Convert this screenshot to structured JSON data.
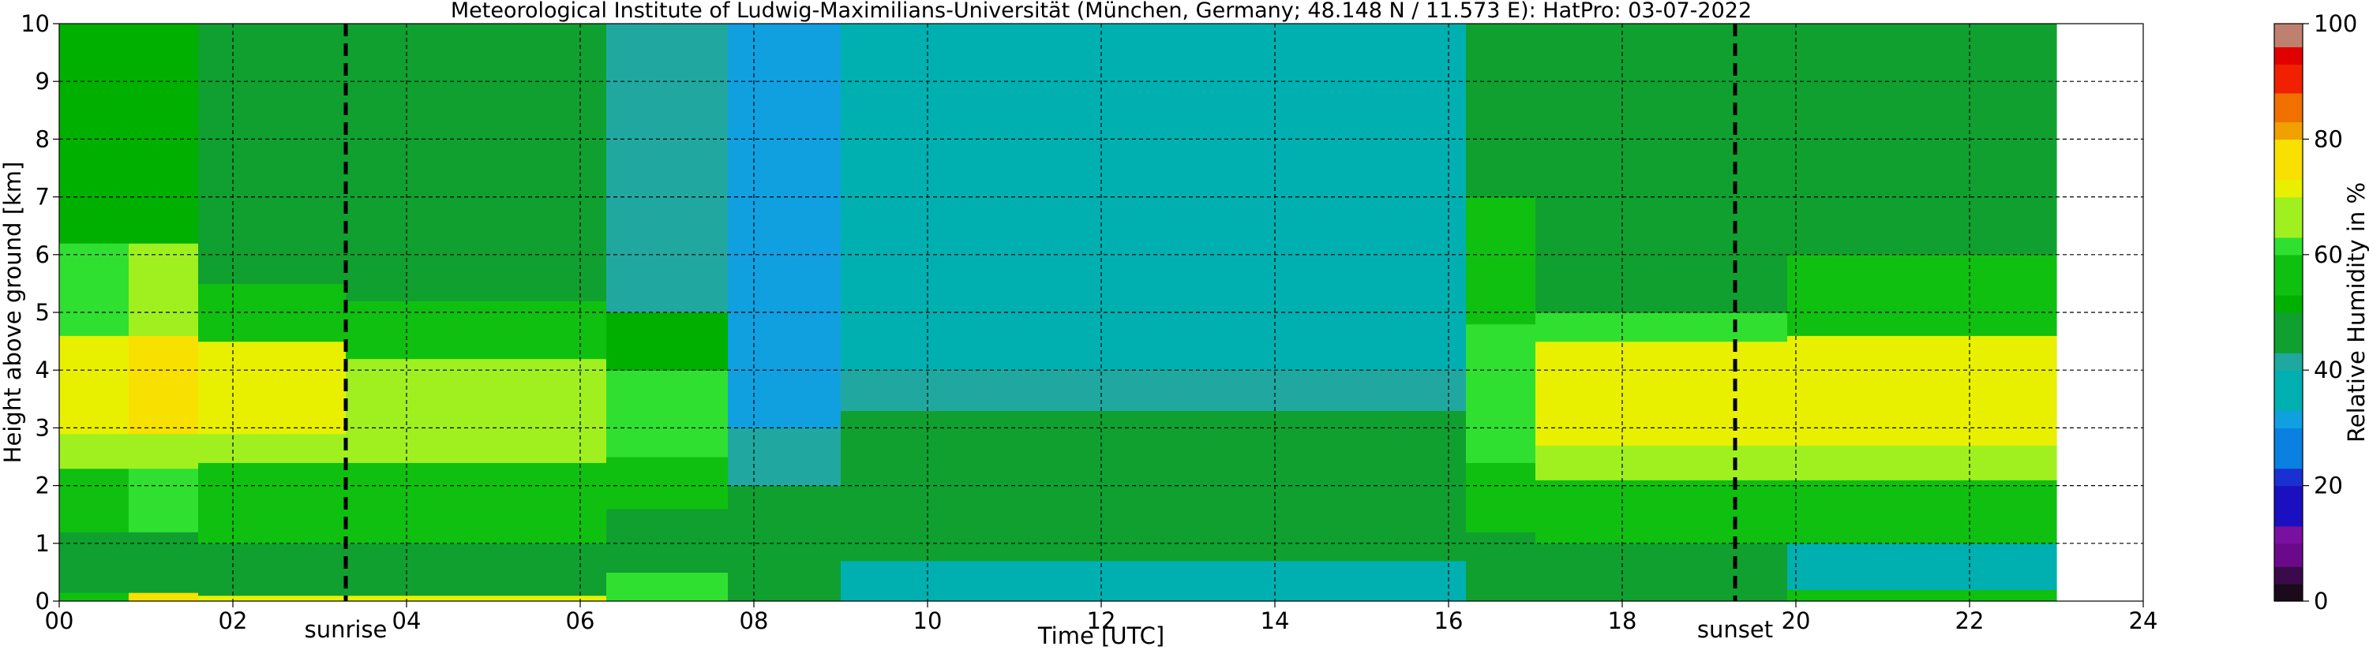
{
  "chart_data": {
    "type": "heatmap",
    "title": "Meteorological Institute of Ludwig-Maximilians-Universität (München, Germany; 48.148 N / 11.573 E):    HatPro: 03-07-2022",
    "xlabel": "Time [UTC]",
    "ylabel": "Height above ground [km]",
    "xlim": [
      0,
      24
    ],
    "ylim": [
      0,
      10
    ],
    "x_ticks": [
      "00",
      "02",
      "04",
      "06",
      "08",
      "10",
      "12",
      "14",
      "16",
      "18",
      "20",
      "22",
      "24"
    ],
    "y_ticks": [
      "0",
      "1",
      "2",
      "3",
      "4",
      "5",
      "6",
      "7",
      "8",
      "9",
      "10"
    ],
    "data_end_hour": 23.0,
    "grid": true,
    "markers": [
      {
        "label": "sunrise",
        "x": 3.3
      },
      {
        "label": "sunset",
        "x": 19.3
      }
    ],
    "colorbar": {
      "label": "Relative Humidity in %",
      "range": [
        0,
        100
      ],
      "ticks": [
        "0",
        "20",
        "40",
        "60",
        "80",
        "100"
      ],
      "stops": [
        {
          "v": 0,
          "c": "#1a0a1a"
        },
        {
          "v": 3,
          "c": "#3a0a4a"
        },
        {
          "v": 6,
          "c": "#6a0a8a"
        },
        {
          "v": 10,
          "c": "#7a10a0"
        },
        {
          "v": 13,
          "c": "#1a10c0"
        },
        {
          "v": 20,
          "c": "#1a30d0"
        },
        {
          "v": 23,
          "c": "#0a80e0"
        },
        {
          "v": 30,
          "c": "#10a0e0"
        },
        {
          "v": 33,
          "c": "#00b0b0"
        },
        {
          "v": 40,
          "c": "#20a8a0"
        },
        {
          "v": 43,
          "c": "#10a030"
        },
        {
          "v": 50,
          "c": "#00b000"
        },
        {
          "v": 53,
          "c": "#10c010"
        },
        {
          "v": 60,
          "c": "#30e030"
        },
        {
          "v": 63,
          "c": "#a0f020"
        },
        {
          "v": 70,
          "c": "#e8f000"
        },
        {
          "v": 73,
          "c": "#f8e000"
        },
        {
          "v": 80,
          "c": "#f0a000"
        },
        {
          "v": 83,
          "c": "#f07000"
        },
        {
          "v": 88,
          "c": "#f02000"
        },
        {
          "v": 93,
          "c": "#e00000"
        },
        {
          "v": 96,
          "c": "#c08070"
        },
        {
          "v": 100,
          "c": "#c0a090"
        }
      ]
    },
    "bands": [
      {
        "from": 0.0,
        "to": 0.8,
        "layers": [
          [
            0,
            0.15,
            58
          ],
          [
            0.15,
            1.2,
            45
          ],
          [
            1.2,
            2.3,
            58
          ],
          [
            2.3,
            2.9,
            66
          ],
          [
            2.9,
            4.6,
            70
          ],
          [
            4.6,
            6.2,
            60
          ],
          [
            6.2,
            10,
            52
          ]
        ]
      },
      {
        "from": 0.8,
        "to": 1.6,
        "layers": [
          [
            0,
            0.15,
            74
          ],
          [
            0.15,
            1.2,
            47
          ],
          [
            1.2,
            2.3,
            60
          ],
          [
            2.3,
            2.9,
            68
          ],
          [
            2.9,
            4.6,
            76
          ],
          [
            4.6,
            6.2,
            64
          ],
          [
            6.2,
            10,
            52
          ]
        ]
      },
      {
        "from": 1.6,
        "to": 3.3,
        "layers": [
          [
            0,
            0.1,
            70
          ],
          [
            0.1,
            1.0,
            45
          ],
          [
            1.0,
            2.4,
            58
          ],
          [
            2.4,
            2.9,
            66
          ],
          [
            2.9,
            4.5,
            70
          ],
          [
            4.5,
            5.5,
            58
          ],
          [
            5.5,
            10,
            46
          ]
        ]
      },
      {
        "from": 3.3,
        "to": 6.3,
        "layers": [
          [
            0,
            0.1,
            70
          ],
          [
            0.1,
            1.0,
            44
          ],
          [
            1.0,
            2.4,
            56
          ],
          [
            2.4,
            2.9,
            63
          ],
          [
            2.9,
            4.2,
            68
          ],
          [
            4.2,
            5.2,
            56
          ],
          [
            5.2,
            10,
            44
          ]
        ]
      },
      {
        "from": 6.3,
        "to": 7.7,
        "layers": [
          [
            0,
            0.5,
            60
          ],
          [
            0.5,
            1.6,
            46
          ],
          [
            1.6,
            2.5,
            54
          ],
          [
            2.5,
            4.0,
            60
          ],
          [
            4.0,
            5.0,
            52
          ],
          [
            5.0,
            10,
            42
          ]
        ]
      },
      {
        "from": 7.7,
        "to": 9.0,
        "layers": [
          [
            0,
            0.4,
            47
          ],
          [
            0.4,
            2.0,
            46
          ],
          [
            2.0,
            3.0,
            42
          ],
          [
            3.0,
            10,
            31
          ]
        ]
      },
      {
        "from": 9.0,
        "to": 16.2,
        "layers": [
          [
            0,
            0.7,
            38
          ],
          [
            0.7,
            3.3,
            45
          ],
          [
            3.3,
            4.0,
            40
          ],
          [
            4.0,
            10,
            33
          ]
        ]
      },
      {
        "from": 16.2,
        "to": 17.0,
        "layers": [
          [
            0,
            0.3,
            47
          ],
          [
            0.3,
            1.2,
            46
          ],
          [
            1.2,
            2.4,
            54
          ],
          [
            2.4,
            4.8,
            62
          ],
          [
            4.8,
            7.0,
            55
          ],
          [
            7.0,
            10,
            44
          ]
        ]
      },
      {
        "from": 17.0,
        "to": 19.9,
        "layers": [
          [
            0,
            0.25,
            45
          ],
          [
            0.25,
            1.0,
            45
          ],
          [
            1.0,
            2.1,
            57
          ],
          [
            2.1,
            2.7,
            64
          ],
          [
            2.7,
            4.5,
            70
          ],
          [
            4.5,
            5.0,
            62
          ],
          [
            5.0,
            10,
            46
          ]
        ]
      },
      {
        "from": 19.9,
        "to": 23.0,
        "layers": [
          [
            0,
            0.2,
            55
          ],
          [
            0.2,
            1.0,
            39
          ],
          [
            1.0,
            2.1,
            56
          ],
          [
            2.1,
            2.7,
            65
          ],
          [
            2.7,
            4.6,
            72
          ],
          [
            4.6,
            6.0,
            58
          ],
          [
            6.0,
            10,
            47
          ]
        ]
      }
    ]
  }
}
